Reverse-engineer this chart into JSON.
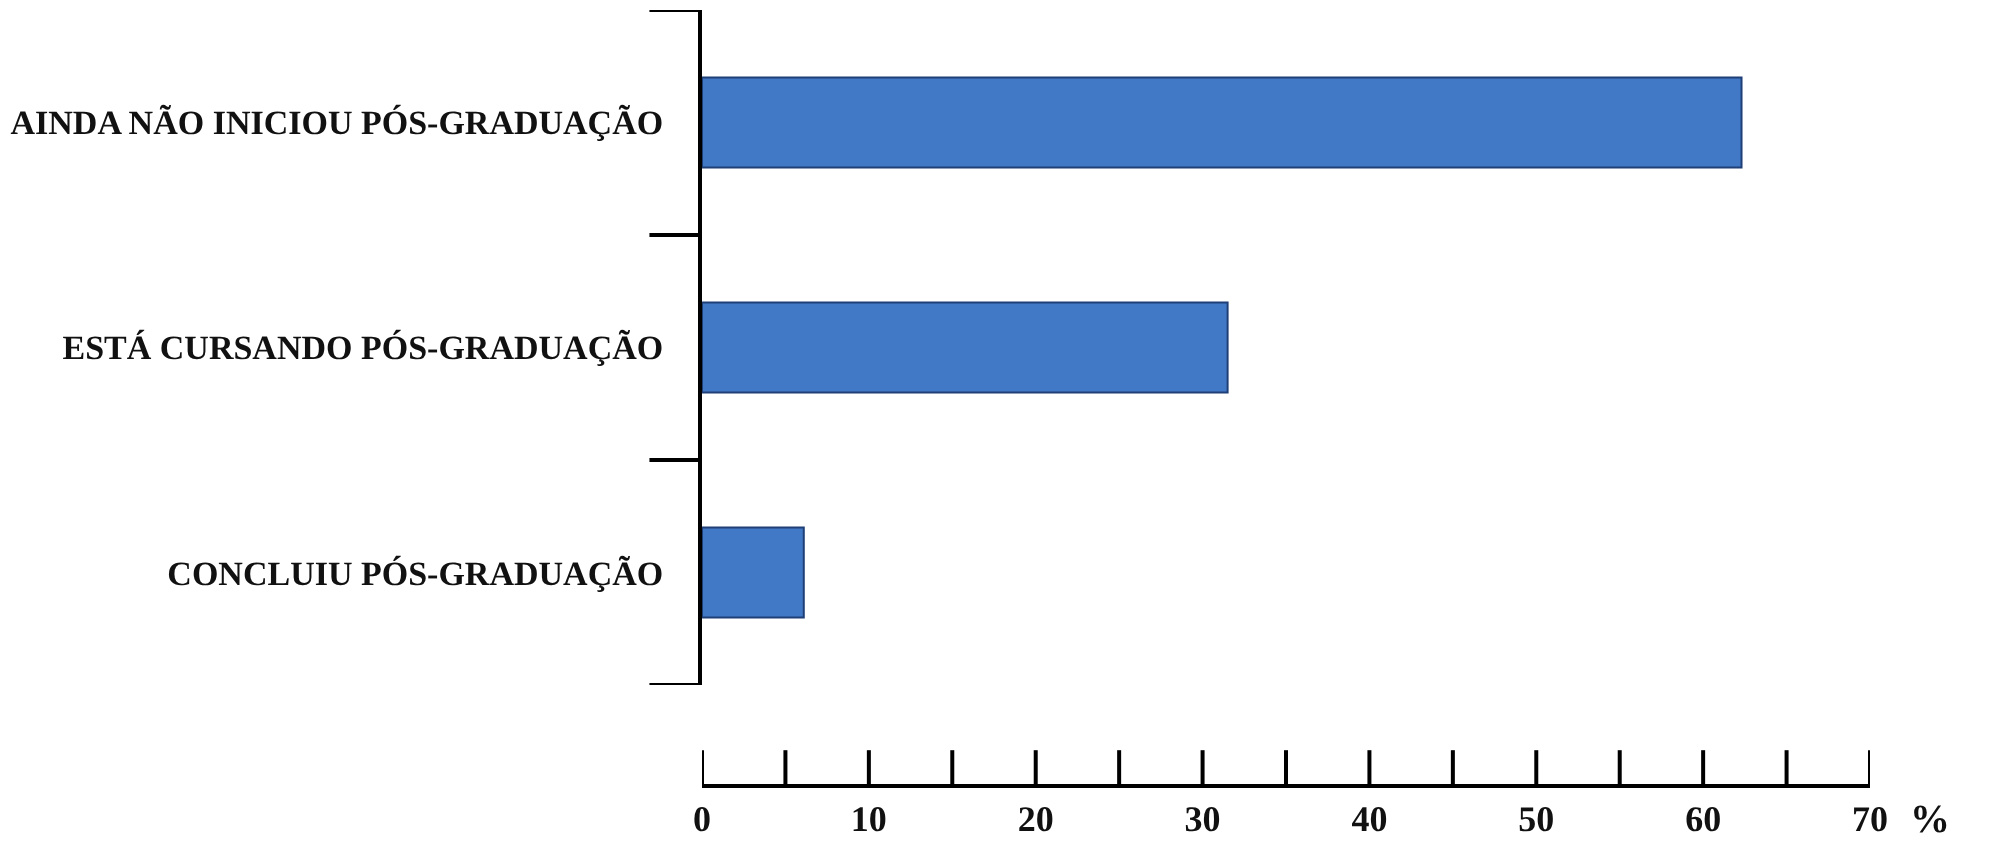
{
  "chart_data": {
    "type": "bar",
    "orientation": "horizontal",
    "categories": [
      "AINDA NÃO INICIOU PÓS-GRADUAÇÃO",
      "ESTÁ CURSANDO PÓS-GRADUAÇÃO",
      "CONCLUIU PÓS-GRADUAÇÃO"
    ],
    "values": [
      62.3,
      31.5,
      6.1
    ],
    "color": "#4279c6",
    "xlabel": "%",
    "xlim": [
      0,
      70
    ],
    "xticks": [
      0,
      10,
      20,
      30,
      40,
      50,
      60,
      70
    ]
  }
}
